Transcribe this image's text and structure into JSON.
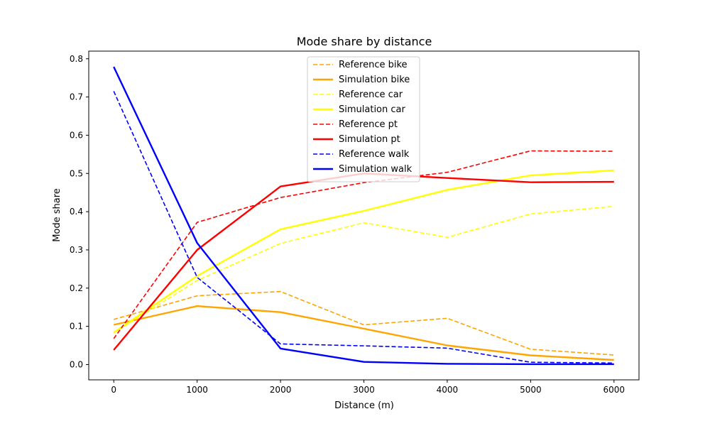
{
  "chart_data": {
    "type": "line",
    "title": "Mode share by distance",
    "xlabel": "Distance (m)",
    "ylabel": "Mode share",
    "xlim": [
      -300,
      6300
    ],
    "ylim": [
      -0.04,
      0.82
    ],
    "x": [
      0,
      1000,
      2000,
      3000,
      4000,
      5000,
      6000
    ],
    "x_ticks": [
      0,
      1000,
      2000,
      3000,
      4000,
      5000,
      6000
    ],
    "x_tick_labels": [
      "0",
      "1000",
      "2000",
      "3000",
      "4000",
      "5000",
      "6000"
    ],
    "y_ticks": [
      0.0,
      0.1,
      0.2,
      0.3,
      0.4,
      0.5,
      0.6,
      0.7,
      0.8
    ],
    "y_tick_labels": [
      "0.0",
      "0.1",
      "0.2",
      "0.3",
      "0.4",
      "0.5",
      "0.6",
      "0.7",
      "0.8"
    ],
    "grid": false,
    "legend_position": "top-center",
    "series": [
      {
        "name": "Reference bike",
        "color": "#ffa500",
        "style": "dashed",
        "values": [
          0.118,
          0.18,
          0.191,
          0.104,
          0.121,
          0.04,
          0.025
        ]
      },
      {
        "name": "Simulation bike",
        "color": "#ffa500",
        "style": "solid",
        "values": [
          0.104,
          0.153,
          0.137,
          0.094,
          0.05,
          0.024,
          0.012
        ]
      },
      {
        "name": "Reference car",
        "color": "#ffff00",
        "style": "dashed",
        "values": [
          0.083,
          0.22,
          0.317,
          0.371,
          0.333,
          0.394,
          0.414
        ]
      },
      {
        "name": "Simulation car",
        "color": "#ffff00",
        "style": "solid",
        "values": [
          0.084,
          0.232,
          0.354,
          0.402,
          0.457,
          0.495,
          0.508
        ]
      },
      {
        "name": "Reference pt",
        "color": "#ff0000",
        "style": "dashed",
        "values": [
          0.068,
          0.372,
          0.437,
          0.476,
          0.503,
          0.559,
          0.558
        ]
      },
      {
        "name": "Simulation pt",
        "color": "#ff0000",
        "style": "solid",
        "values": [
          0.038,
          0.3,
          0.466,
          0.5,
          0.488,
          0.477,
          0.478
        ]
      },
      {
        "name": "Reference walk",
        "color": "#0000ff",
        "style": "dashed",
        "values": [
          0.715,
          0.228,
          0.054,
          0.049,
          0.043,
          0.006,
          0.004
        ]
      },
      {
        "name": "Simulation walk",
        "color": "#0000ff",
        "style": "solid",
        "values": [
          0.779,
          0.318,
          0.042,
          0.007,
          0.002,
          0.001,
          0.001
        ]
      }
    ]
  }
}
